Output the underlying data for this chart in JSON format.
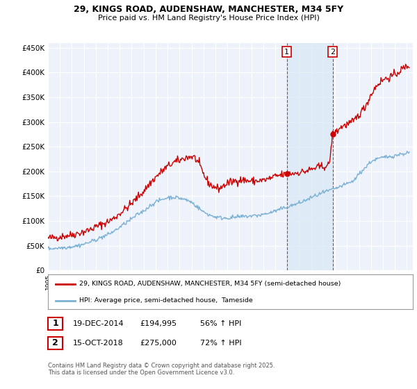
{
  "title": "29, KINGS ROAD, AUDENSHAW, MANCHESTER, M34 5FY",
  "subtitle": "Price paid vs. HM Land Registry's House Price Index (HPI)",
  "background_color": "#ffffff",
  "plot_bg_color": "#eef2fa",
  "grid_color": "#ffffff",
  "ylim": [
    0,
    460000
  ],
  "yticks": [
    0,
    50000,
    100000,
    150000,
    200000,
    250000,
    300000,
    350000,
    400000,
    450000
  ],
  "ytick_labels": [
    "£0",
    "£50K",
    "£100K",
    "£150K",
    "£200K",
    "£250K",
    "£300K",
    "£350K",
    "£400K",
    "£450K"
  ],
  "xtick_years": [
    1995,
    1996,
    1997,
    1998,
    1999,
    2000,
    2001,
    2002,
    2003,
    2004,
    2005,
    2006,
    2007,
    2008,
    2009,
    2010,
    2011,
    2012,
    2013,
    2014,
    2015,
    2016,
    2017,
    2018,
    2019,
    2020,
    2021,
    2022,
    2023,
    2024,
    2025
  ],
  "marker1_date": 2014.97,
  "marker1_price": 194995,
  "marker1_label": "1",
  "marker2_date": 2018.79,
  "marker2_price": 275000,
  "marker2_label": "2",
  "red_line_color": "#cc0000",
  "blue_line_color": "#7ab0d4",
  "marker_box_color": "#cc0000",
  "legend1_label": "29, KINGS ROAD, AUDENSHAW, MANCHESTER, M34 5FY (semi-detached house)",
  "legend2_label": "HPI: Average price, semi-detached house,  Tameside",
  "table_row1": [
    "1",
    "19-DEC-2014",
    "£194,995",
    "56% ↑ HPI"
  ],
  "table_row2": [
    "2",
    "15-OCT-2018",
    "£275,000",
    "72% ↑ HPI"
  ],
  "footer": "Contains HM Land Registry data © Crown copyright and database right 2025.\nThis data is licensed under the Open Government Licence v3.0.",
  "hpi_region_color": "#d8e8f5",
  "red_x": [
    1995.0,
    1995.5,
    1996.0,
    1996.5,
    1997.0,
    1997.5,
    1998.0,
    1998.5,
    1999.0,
    1999.5,
    2000.0,
    2000.5,
    2001.0,
    2001.5,
    2002.0,
    2002.5,
    2003.0,
    2003.5,
    2004.0,
    2004.5,
    2005.0,
    2005.5,
    2006.0,
    2006.5,
    2007.0,
    2007.25,
    2007.5,
    2007.75,
    2008.0,
    2008.25,
    2008.5,
    2008.75,
    2009.0,
    2009.25,
    2009.5,
    2009.75,
    2010.0,
    2010.5,
    2011.0,
    2011.5,
    2012.0,
    2012.5,
    2013.0,
    2013.5,
    2014.0,
    2014.97,
    2015.0,
    2015.5,
    2016.0,
    2016.5,
    2017.0,
    2017.5,
    2018.0,
    2018.5,
    2018.79,
    2019.0,
    2019.5,
    2020.0,
    2020.5,
    2021.0,
    2021.5,
    2022.0,
    2022.5,
    2023.0,
    2023.5,
    2024.0,
    2024.5,
    2025.2
  ],
  "red_y": [
    65000,
    66000,
    68000,
    70000,
    72000,
    75000,
    78000,
    82000,
    88000,
    93000,
    98000,
    105000,
    115000,
    125000,
    135000,
    148000,
    160000,
    175000,
    188000,
    200000,
    210000,
    218000,
    222000,
    228000,
    230000,
    228000,
    220000,
    208000,
    195000,
    183000,
    175000,
    170000,
    168000,
    165000,
    168000,
    172000,
    176000,
    180000,
    183000,
    182000,
    180000,
    181000,
    182000,
    185000,
    190000,
    194995,
    195000,
    196000,
    198000,
    200000,
    204000,
    208000,
    210000,
    212000,
    275000,
    278000,
    290000,
    295000,
    300000,
    315000,
    330000,
    355000,
    375000,
    385000,
    390000,
    395000,
    405000,
    415000
  ],
  "blue_x": [
    1995.0,
    1995.5,
    1996.0,
    1996.5,
    1997.0,
    1997.5,
    1998.0,
    1998.5,
    1999.0,
    1999.5,
    2000.0,
    2000.5,
    2001.0,
    2001.5,
    2002.0,
    2002.5,
    2003.0,
    2003.5,
    2004.0,
    2004.5,
    2005.0,
    2005.5,
    2006.0,
    2006.5,
    2007.0,
    2007.5,
    2008.0,
    2008.5,
    2009.0,
    2009.5,
    2010.0,
    2010.5,
    2011.0,
    2011.5,
    2012.0,
    2012.5,
    2013.0,
    2013.5,
    2014.0,
    2014.5,
    2015.0,
    2015.5,
    2016.0,
    2016.5,
    2017.0,
    2017.5,
    2018.0,
    2018.5,
    2019.0,
    2019.5,
    2020.0,
    2020.5,
    2021.0,
    2021.5,
    2022.0,
    2022.5,
    2023.0,
    2023.5,
    2024.0,
    2024.5,
    2025.2
  ],
  "blue_y": [
    44000,
    44500,
    45500,
    46500,
    48000,
    50000,
    53000,
    57000,
    62000,
    67000,
    72000,
    79000,
    87000,
    96000,
    104000,
    113000,
    120000,
    130000,
    138000,
    143000,
    147000,
    148000,
    146000,
    143000,
    138000,
    128000,
    118000,
    112000,
    108000,
    106000,
    106000,
    107000,
    108000,
    109000,
    110000,
    111000,
    113000,
    116000,
    120000,
    124000,
    128000,
    132000,
    136000,
    141000,
    147000,
    152000,
    157000,
    161000,
    165000,
    170000,
    175000,
    180000,
    195000,
    207000,
    220000,
    225000,
    228000,
    230000,
    232000,
    235000,
    238000
  ]
}
